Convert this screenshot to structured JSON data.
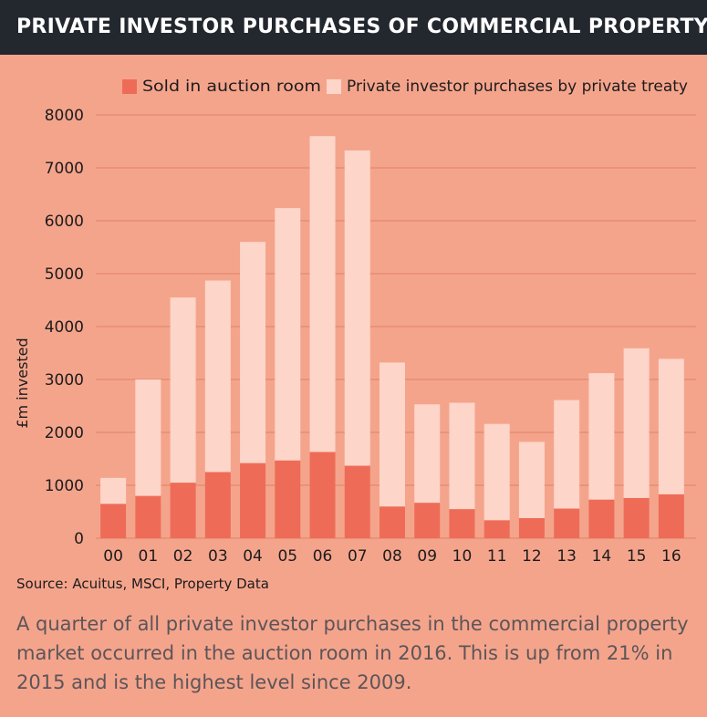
{
  "header": {
    "title": "PRIVATE INVESTOR PURCHASES OF COMMERCIAL PROPERTY"
  },
  "footer": {
    "source": "Source: Acuitus, MSCI, Property Data",
    "caption": "A quarter of all private investor purchases in the commercial property market occurred in the auction room in 2016. This is up from 21% in 2015 and is the highest level since 2009."
  },
  "colors": {
    "background": "#f5a48c",
    "auction": "#ee6c57",
    "private_treaty": "#fdd5c9",
    "header_bg": "#23272e"
  },
  "chart_data": {
    "type": "bar",
    "stacked": true,
    "title": "PRIVATE INVESTOR PURCHASES OF COMMERCIAL PROPERTY",
    "xlabel": "",
    "ylabel": "£m invested",
    "ylim": [
      0,
      8000
    ],
    "yticks": [
      "0",
      "1000",
      "2000",
      "3000",
      "4000",
      "5000",
      "6000",
      "7000",
      "8000"
    ],
    "categories": [
      "00",
      "01",
      "02",
      "03",
      "04",
      "05",
      "06",
      "07",
      "08",
      "09",
      "10",
      "11",
      "12",
      "13",
      "14",
      "15",
      "16"
    ],
    "legend_position": "top-right",
    "series": [
      {
        "name": "Sold in auction room",
        "color": "#ee6c57",
        "values": [
          650,
          800,
          1050,
          1250,
          1420,
          1470,
          1630,
          1370,
          600,
          670,
          550,
          340,
          380,
          560,
          730,
          760,
          830
        ]
      },
      {
        "name": "Private investor purchases by private treaty",
        "color": "#fdd5c9",
        "values": [
          490,
          2200,
          3500,
          3620,
          4180,
          4770,
          5970,
          5960,
          2720,
          1860,
          2010,
          1820,
          1440,
          2050,
          2390,
          2830,
          2560
        ]
      }
    ]
  }
}
